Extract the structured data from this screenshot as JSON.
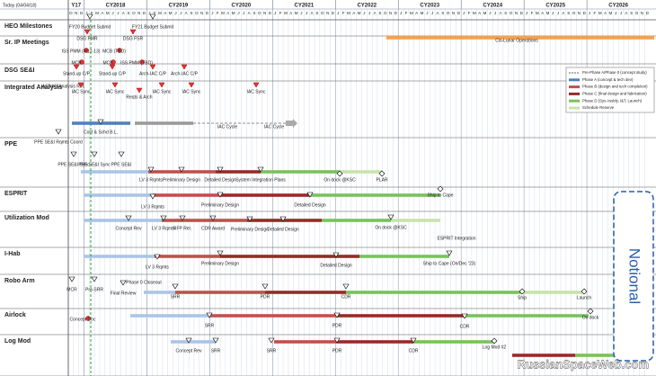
{
  "header": {
    "today": "Today (04/04/18)",
    "years": [
      {
        "label": "Y17",
        "months": [
          "O",
          "N",
          "D"
        ]
      },
      {
        "label": "CY2018",
        "months": [
          "J",
          "F",
          "M",
          "A",
          "M",
          "J",
          "J",
          "A",
          "S",
          "O",
          "N",
          "D"
        ]
      },
      {
        "label": "CY2019",
        "months": [
          "J",
          "F",
          "M",
          "A",
          "M",
          "J",
          "J",
          "A",
          "S",
          "O",
          "N",
          "D"
        ]
      },
      {
        "label": "CY2020",
        "months": [
          "J",
          "F",
          "M",
          "A",
          "M",
          "J",
          "J",
          "A",
          "S",
          "O",
          "N",
          "D"
        ]
      },
      {
        "label": "CY2021",
        "months": [
          "J",
          "F",
          "M",
          "A",
          "M",
          "J",
          "J",
          "A",
          "S",
          "O",
          "N",
          "D"
        ]
      },
      {
        "label": "CY2022",
        "months": [
          "J",
          "F",
          "M",
          "A",
          "M",
          "J",
          "J",
          "A",
          "S",
          "O",
          "N",
          "D"
        ]
      },
      {
        "label": "CY2023",
        "months": [
          "J",
          "F",
          "M",
          "A",
          "M",
          "J",
          "J",
          "A",
          "S",
          "O",
          "N",
          "D"
        ]
      },
      {
        "label": "CY2024",
        "months": [
          "J",
          "F",
          "M",
          "A",
          "M",
          "J",
          "J",
          "A",
          "S",
          "O",
          "N",
          "D"
        ]
      },
      {
        "label": "CY2025",
        "months": [
          "J",
          "F",
          "M",
          "A",
          "M",
          "J",
          "J",
          "A",
          "S",
          "O",
          "N",
          "D"
        ]
      },
      {
        "label": "CY2026",
        "months": [
          "J",
          "F",
          "M",
          "A",
          "M",
          "J",
          "J",
          "A",
          "S",
          "O",
          "N",
          "D"
        ]
      }
    ]
  },
  "rows": [
    {
      "name": "HEO Milestones",
      "labels": [
        "FY20 Budget Submit",
        "FY21 Budget Submit",
        "DSG PMR",
        "DSG FSR",
        "Cis-Lunar Operations"
      ]
    },
    {
      "name": "Sr. IP Meetings",
      "labels": [
        "ISS PMM (4/12-13)",
        "MCB (TBD)",
        "MCB",
        "MCB",
        "ISS PMM (TBD)"
      ]
    },
    {
      "name": "DSG SE&I",
      "labels": [
        "Stand-up C/P",
        "Stand-up C/P",
        "Arch-IAC C/P",
        "Arch-IAC C/P"
      ]
    },
    {
      "name": "Integrated Analysis",
      "labels": [
        "IAC H/O Analysis Ref.",
        "IAC Sync",
        "IAC Sync",
        "Reqts & Arch",
        "IAC Sync",
        "IAC Sync",
        "IAC Sync",
        "Cost & Schd B.L.",
        "IAC Cycle",
        "IAC Cycle"
      ]
    },
    {
      "name": "PPE",
      "labels": [
        "PPE SE&I Rqmts Coord",
        "PPE SE&I Sync",
        "PPE SE&I Sync",
        "PPE SE&I",
        "LV 3 Rqmts",
        "Preliminary Design",
        "Detailed Design",
        "System Integration Plans",
        "On dock @KSC",
        "PLAR"
      ]
    },
    {
      "name": "ESPRIT",
      "labels": [
        "LV 3 Rqmts",
        "Preliminary Design",
        "Detailed Design",
        "Ship to Cape"
      ]
    },
    {
      "name": "Utilization Mod",
      "labels": [
        "Concept Rev",
        "LV 3 Rqmts",
        "RFP Rel.",
        "CDR Award",
        "Preliminary Design",
        "Detailed Design",
        "On dock @KSC",
        "ESPRIT Integration"
      ]
    },
    {
      "name": "I-Hab",
      "labels": [
        "LV 3 Rqmts",
        "Preliminary Design",
        "Detailed Design",
        "Ship to Cape (On/Dec '23)"
      ]
    },
    {
      "name": "Robo Arm",
      "labels": [
        "MCR",
        "Pre-SRR",
        "Phase 0 Closeout",
        "Final Review",
        "SRR",
        "PDR",
        "CDR",
        "Ship",
        "Launch"
      ]
    },
    {
      "name": "Airlock",
      "labels": [
        "Concept Doc",
        "SRR",
        "PDR",
        "CDR",
        "On dock"
      ]
    },
    {
      "name": "Log Mod",
      "labels": [
        "Concept Rev",
        "SRR",
        "SRR",
        "PDR",
        "CDR",
        "Log Mod #2"
      ]
    }
  ],
  "legend": [
    "Pre-Phase A/Phase 0 (concept study)",
    "Phase A (concept & tech dev)",
    "Phase B (design and tech completion)",
    "Phase C (final design and fabrication)",
    "Phase D (Sys Assbly, I&T, Launch)",
    "Schedule Reserve"
  ],
  "notional": "Notional",
  "watermark": "RussianSpaceWeb.com"
}
